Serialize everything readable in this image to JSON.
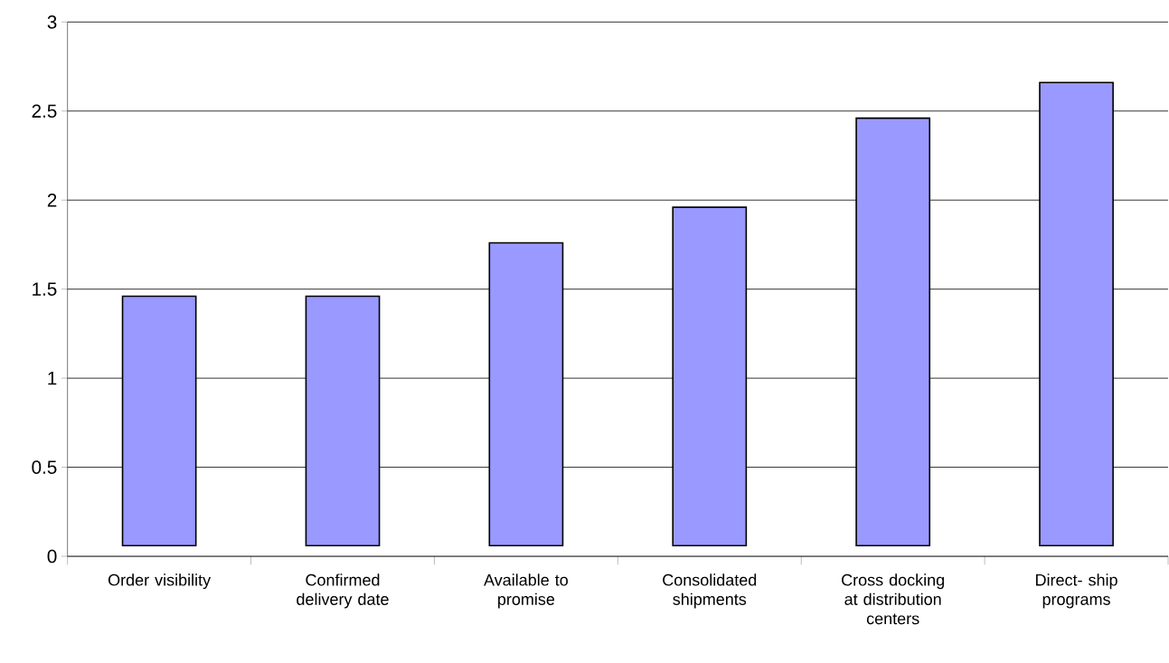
{
  "chart_data": {
    "type": "bar",
    "categories": [
      "Order visibility",
      "Confirmed delivery date",
      "Available to promise",
      "Consolidated shipments",
      "Cross docking at distribution centers",
      "Direct- ship programs"
    ],
    "values": [
      1.4,
      1.4,
      1.7,
      1.9,
      2.4,
      2.6
    ],
    "base": [
      0.06,
      0.06,
      0.06,
      0.06,
      0.06,
      0.06
    ],
    "color": "#9999ff",
    "ylim": [
      0,
      3
    ],
    "yticks": [
      0,
      0.5,
      1,
      1.5,
      2,
      2.5,
      3
    ],
    "grid": "y"
  }
}
